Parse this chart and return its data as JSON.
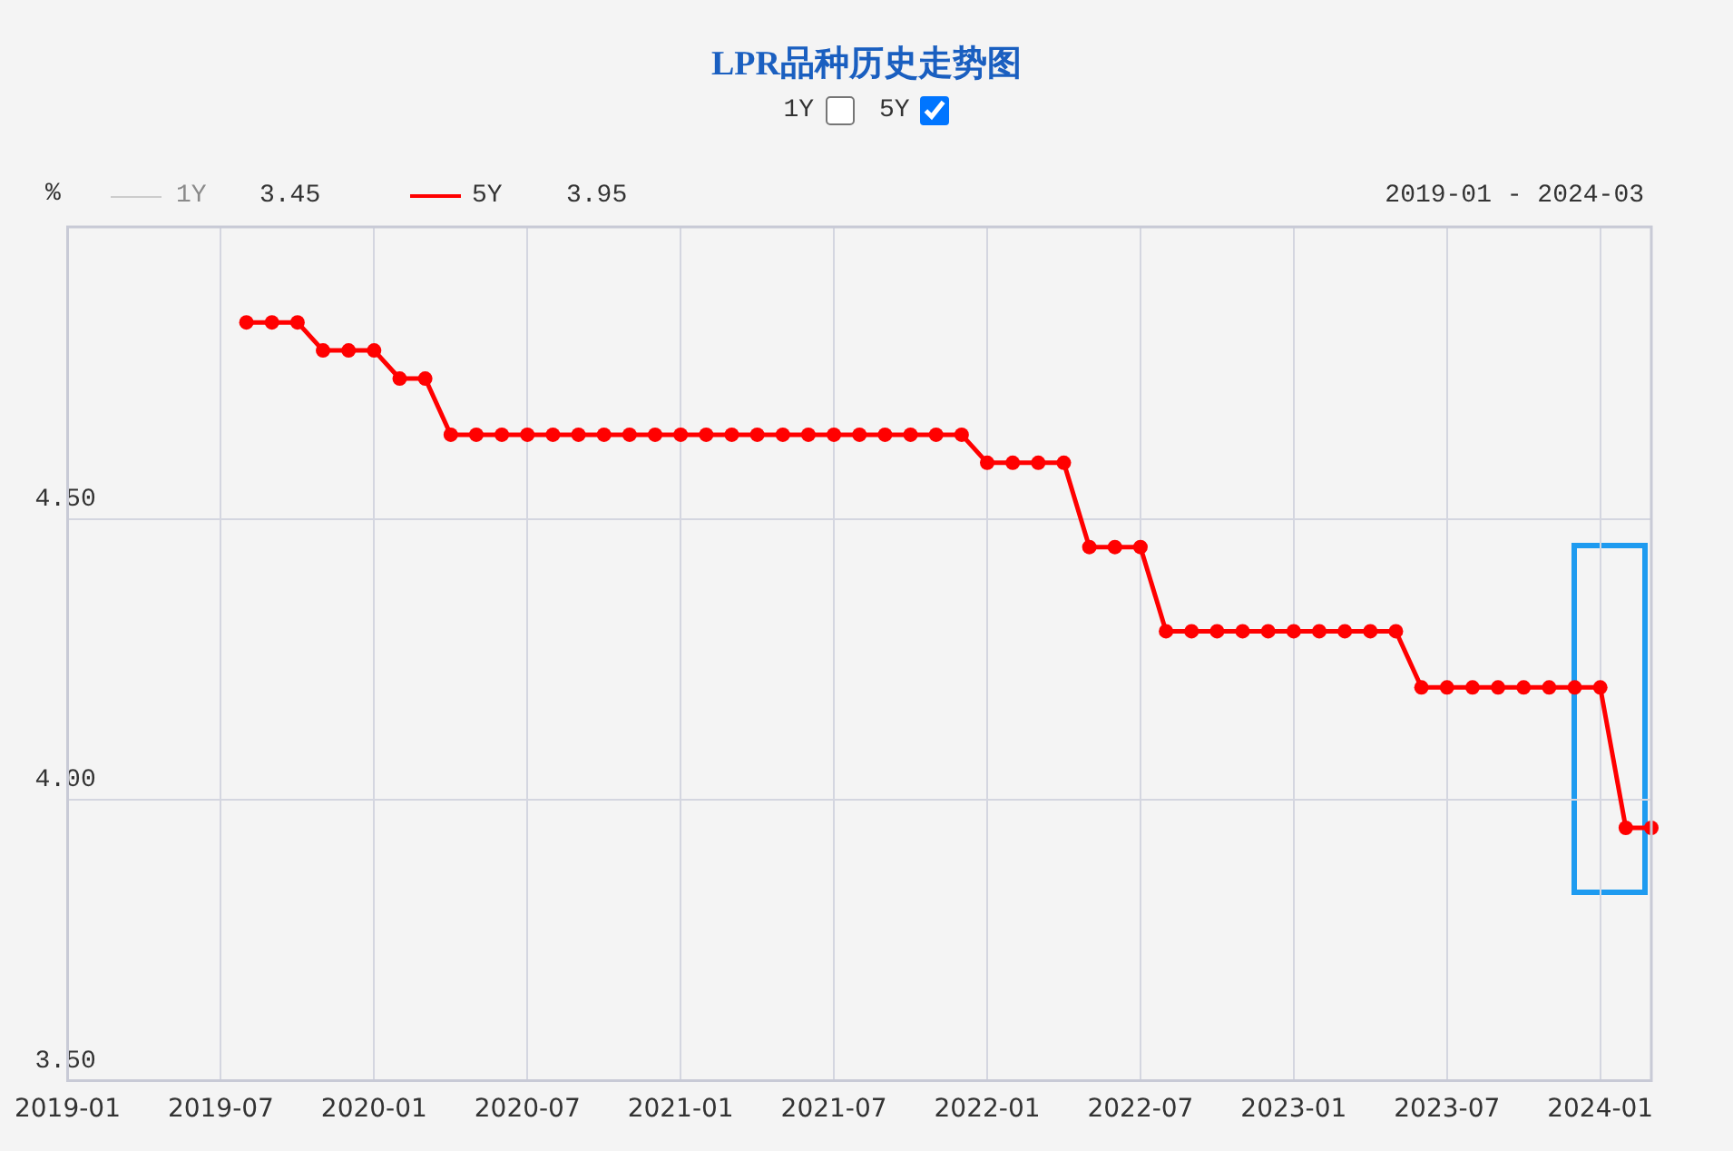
{
  "chart_data": {
    "type": "line",
    "title": "LPR品种历史走势图",
    "ylabel": "%",
    "x": [
      "2019-08",
      "2019-09",
      "2019-10",
      "2019-11",
      "2019-12",
      "2020-01",
      "2020-02",
      "2020-03",
      "2020-04",
      "2020-05",
      "2020-06",
      "2020-07",
      "2020-08",
      "2020-09",
      "2020-10",
      "2020-11",
      "2020-12",
      "2021-01",
      "2021-02",
      "2021-03",
      "2021-04",
      "2021-05",
      "2021-06",
      "2021-07",
      "2021-08",
      "2021-09",
      "2021-10",
      "2021-11",
      "2021-12",
      "2022-01",
      "2022-02",
      "2022-03",
      "2022-04",
      "2022-05",
      "2022-06",
      "2022-07",
      "2022-08",
      "2022-09",
      "2022-10",
      "2022-11",
      "2022-12",
      "2023-01",
      "2023-02",
      "2023-03",
      "2023-04",
      "2023-05",
      "2023-06",
      "2023-07",
      "2023-08",
      "2023-09",
      "2023-10",
      "2023-11",
      "2023-12",
      "2024-01",
      "2024-02",
      "2024-03"
    ],
    "series": [
      {
        "name": "5Y",
        "color": "#ff0000",
        "values": [
          4.85,
          4.85,
          4.85,
          4.8,
          4.8,
          4.8,
          4.75,
          4.75,
          4.65,
          4.65,
          4.65,
          4.65,
          4.65,
          4.65,
          4.65,
          4.65,
          4.65,
          4.65,
          4.65,
          4.65,
          4.65,
          4.65,
          4.65,
          4.65,
          4.65,
          4.65,
          4.65,
          4.65,
          4.65,
          4.6,
          4.6,
          4.6,
          4.6,
          4.45,
          4.45,
          4.45,
          4.3,
          4.3,
          4.3,
          4.3,
          4.3,
          4.3,
          4.3,
          4.3,
          4.3,
          4.3,
          4.2,
          4.2,
          4.2,
          4.2,
          4.2,
          4.2,
          4.2,
          4.2,
          3.95,
          3.95
        ]
      }
    ],
    "xlim": [
      "2019-01",
      "2024-03"
    ],
    "xticks": [
      "2019-01",
      "2019-07",
      "2020-01",
      "2020-07",
      "2021-01",
      "2021-07",
      "2022-01",
      "2022-07",
      "2023-01",
      "2023-07",
      "2024-01"
    ],
    "ylim": [
      3.5,
      5.02
    ],
    "yticks": [
      {
        "value": 3.5,
        "label": "3.50"
      },
      {
        "value": 4.0,
        "label": "4.00"
      },
      {
        "value": 4.5,
        "label": "4.50"
      }
    ],
    "grid": true,
    "legend": "top left",
    "marker": "circle",
    "line_style": "solid",
    "annotations": [
      "1Y",
      "5Y",
      "1Y",
      "3.45",
      "3.95",
      "2019-01 - 2024-03"
    ]
  }
}
